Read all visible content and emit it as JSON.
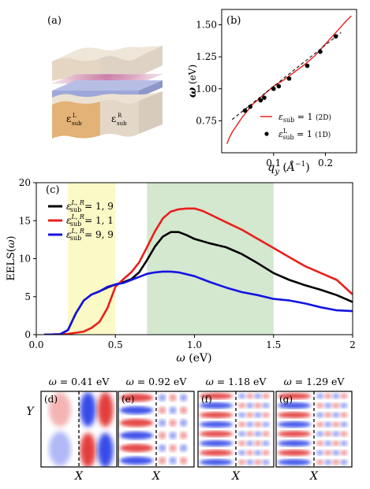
{
  "panel_labels": {
    "a": "(a)",
    "b": "(b)",
    "c": "(c)",
    "d": "(d)",
    "e": "(e)",
    "f": "(f)",
    "g": "(g)"
  },
  "schematic": {
    "left_label": "ε",
    "left_sub": "sub",
    "left_sup": "L",
    "right_label": "ε",
    "right_sub": "sub",
    "right_sup": "R",
    "colors": {
      "left": "#e2b276",
      "right": "#e3d8c8",
      "slab": "#9ea8d8",
      "stripes": "#d89ab8"
    }
  },
  "chart_data": [
    {
      "id": "b",
      "type": "line",
      "xlabel": "q_y (Å⁻¹)",
      "ylabel": "ω (eV)",
      "xlim": [
        0.0,
        0.26
      ],
      "ylim": [
        0.5,
        1.62
      ],
      "xticks": [
        0.1,
        0.2
      ],
      "xtick_labels": [
        "0.1",
        "0.2"
      ],
      "yticks": [
        0.75,
        1.0,
        1.25,
        1.5
      ],
      "ytick_labels": [
        "0.75",
        "1.00",
        "1.25",
        "1.50"
      ],
      "legend_position": "bottom-right",
      "series": [
        {
          "name": "ε_sub = 1 (2D)",
          "kind": "line",
          "color": "#e8201c",
          "x": [
            0.01,
            0.015,
            0.02,
            0.03,
            0.04,
            0.05,
            0.06,
            0.08,
            0.1,
            0.12,
            0.14,
            0.16,
            0.18,
            0.2,
            0.22,
            0.24,
            0.25
          ],
          "y": [
            0.57,
            0.62,
            0.66,
            0.72,
            0.78,
            0.83,
            0.88,
            0.95,
            1.02,
            1.07,
            1.13,
            1.19,
            1.26,
            1.35,
            1.44,
            1.53,
            1.57
          ]
        },
        {
          "name": "ε_sub^L = 1 (1D)",
          "kind": "scatter",
          "color": "#000000",
          "x": [
            0.045,
            0.055,
            0.075,
            0.082,
            0.1,
            0.11,
            0.13,
            0.165,
            0.19,
            0.22
          ],
          "y": [
            0.83,
            0.86,
            0.91,
            0.93,
            1.0,
            1.02,
            1.08,
            1.18,
            1.29,
            1.41
          ]
        },
        {
          "name": "fit",
          "kind": "dashed",
          "color": "#000000",
          "x": [
            0.02,
            0.23
          ],
          "y": [
            0.76,
            1.44
          ]
        }
      ]
    },
    {
      "id": "c",
      "type": "line",
      "xlabel": "ω (eV)",
      "ylabel": "EELS(ω)",
      "xlim": [
        0.0,
        2.0
      ],
      "ylim": [
        0,
        20
      ],
      "xticks": [
        0.0,
        0.5,
        1.0,
        1.5,
        2.0
      ],
      "xtick_labels": [
        "0.0",
        "0.5",
        "1.0",
        "1.5",
        "2"
      ],
      "yticks": [
        0,
        5,
        10,
        15,
        20
      ],
      "ytick_labels": [
        "0",
        "5",
        "10",
        "15",
        "20"
      ],
      "legend_position": "top-left",
      "shaded": [
        {
          "x0": 0.2,
          "x1": 0.5,
          "color": "#fbf9c6"
        },
        {
          "x0": 0.7,
          "x1": 1.5,
          "color": "#d4e7cf"
        }
      ],
      "series": [
        {
          "name": "ε_sub^{L,R} = 1, 9",
          "color": "#000000",
          "x": [
            0.05,
            0.15,
            0.2,
            0.25,
            0.3,
            0.35,
            0.4,
            0.45,
            0.5,
            0.55,
            0.6,
            0.65,
            0.7,
            0.75,
            0.8,
            0.85,
            0.9,
            0.95,
            1.0,
            1.1,
            1.2,
            1.3,
            1.4,
            1.5,
            1.6,
            1.7,
            1.8,
            1.9,
            2.0
          ],
          "y": [
            0.0,
            0.05,
            0.6,
            2.8,
            4.5,
            5.3,
            5.7,
            6.2,
            6.6,
            6.9,
            7.3,
            8.2,
            9.8,
            11.6,
            12.9,
            13.5,
            13.5,
            13.1,
            12.6,
            12.0,
            11.5,
            10.6,
            9.4,
            8.1,
            7.2,
            6.5,
            5.9,
            5.2,
            4.3
          ]
        },
        {
          "name": "ε_sub^{L,R} = 1, 1",
          "color": "#e8201c",
          "x": [
            0.05,
            0.2,
            0.3,
            0.35,
            0.4,
            0.45,
            0.5,
            0.55,
            0.6,
            0.65,
            0.7,
            0.75,
            0.8,
            0.85,
            0.9,
            0.95,
            1.0,
            1.05,
            1.1,
            1.2,
            1.3,
            1.4,
            1.5,
            1.6,
            1.7,
            1.8,
            1.9,
            2.0
          ],
          "y": [
            0.0,
            0.1,
            0.4,
            0.9,
            1.7,
            3.5,
            6.3,
            7.3,
            8.2,
            9.5,
            11.5,
            13.6,
            15.3,
            16.2,
            16.5,
            16.6,
            16.6,
            16.3,
            15.8,
            14.8,
            13.8,
            12.6,
            11.4,
            10.2,
            9.0,
            8.1,
            7.2,
            5.3
          ]
        },
        {
          "name": "ε_sub^{L,R} = 9, 9",
          "color": "#1414e0",
          "x": [
            0.05,
            0.15,
            0.2,
            0.25,
            0.3,
            0.35,
            0.4,
            0.45,
            0.5,
            0.55,
            0.6,
            0.65,
            0.7,
            0.75,
            0.8,
            0.85,
            0.9,
            1.0,
            1.1,
            1.2,
            1.3,
            1.4,
            1.5,
            1.6,
            1.7,
            1.8,
            1.9,
            2.0
          ],
          "y": [
            0.0,
            0.05,
            0.6,
            2.8,
            4.5,
            5.3,
            5.7,
            6.3,
            6.6,
            6.8,
            7.2,
            7.6,
            8.0,
            8.2,
            8.3,
            8.3,
            8.2,
            7.7,
            6.9,
            6.2,
            5.6,
            5.2,
            4.7,
            4.5,
            4.1,
            3.6,
            3.2,
            3.1
          ]
        }
      ]
    }
  ],
  "maps": [
    {
      "id": "d",
      "title": "ω = 0.41 eV",
      "ylabel": "Y",
      "xlabel": "X"
    },
    {
      "id": "e",
      "title": "ω = 0.92 eV",
      "ylabel": "",
      "xlabel": "X"
    },
    {
      "id": "f",
      "title": "ω = 1.18 eV",
      "ylabel": "",
      "xlabel": "X"
    },
    {
      "id": "g",
      "title": "ω = 1.29 eV",
      "ylabel": "",
      "xlabel": "X"
    }
  ]
}
